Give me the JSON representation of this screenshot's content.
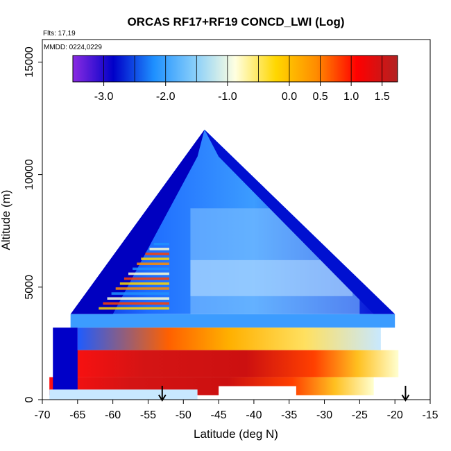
{
  "chart_data": {
    "type": "heatmap",
    "title": "ORCAS RF17+RF19 CONCD_LWI (Log)",
    "annotations": [
      "Flts: 17,19",
      "MMDD: 0224,0229"
    ],
    "xlabel": "Latitude (deg N)",
    "ylabel": "Altitude (m)",
    "xlim": [
      -70,
      -15
    ],
    "ylim": [
      0,
      16000
    ],
    "x_ticks": [
      -70,
      -65,
      -60,
      -55,
      -50,
      -45,
      -40,
      -35,
      -30,
      -25,
      -20,
      -15
    ],
    "x_tick_labels": [
      "-70",
      "-65",
      "-60",
      "-55",
      "-50",
      "-45",
      "-40",
      "-35",
      "-30",
      "-25",
      "-20",
      "-15"
    ],
    "y_ticks": [
      0,
      5000,
      10000,
      15000
    ],
    "y_tick_labels": [
      "0",
      "5000",
      "10000",
      "15000"
    ],
    "colorbar": {
      "range": [
        -3.5,
        1.75
      ],
      "ticks": [
        -3.0,
        -2.0,
        -1.0,
        0.0,
        0.5,
        1.0,
        1.5
      ],
      "tick_labels": [
        "-3.0",
        "-2.0",
        "-1.0",
        "0.0",
        "0.5",
        "1.0",
        "1.5"
      ],
      "colors": [
        "#8A2BE2",
        "#0000C8",
        "#1E90FF",
        "#87CEFA",
        "#FFFFE0",
        "#FFD700",
        "#FF8C00",
        "#FF0000",
        "#B22222"
      ]
    },
    "arrows_x": [
      -53,
      -18.5
    ],
    "envelope": {
      "peak": {
        "lat": -47,
        "alt": 12000
      },
      "left_base": {
        "lat": -69,
        "alt": 500
      },
      "right_top": {
        "lat": -19.5,
        "alt": 3500
      },
      "right_bottom": {
        "lat": -20.5,
        "alt": 1000
      }
    },
    "layers": [
      {
        "alt_min": 200,
        "alt_max": 1000,
        "lat_min": -69,
        "lat_max": -23,
        "log_value": 1.1
      },
      {
        "alt_min": 1000,
        "alt_max": 2200,
        "lat_min": -66,
        "lat_max": -25,
        "log_value": 1.3
      },
      {
        "alt_min": 2200,
        "alt_max": 3200,
        "lat_min": -65,
        "lat_max": -22,
        "log_value": 0.2
      },
      {
        "alt_min": 3200,
        "alt_max": 3800,
        "lat_min": -64,
        "lat_max": -20,
        "log_value": -1.2
      },
      {
        "alt_min": 3800,
        "alt_max": 12000,
        "lat_min": -69,
        "lat_max": -20,
        "log_value": -1.8
      }
    ]
  }
}
